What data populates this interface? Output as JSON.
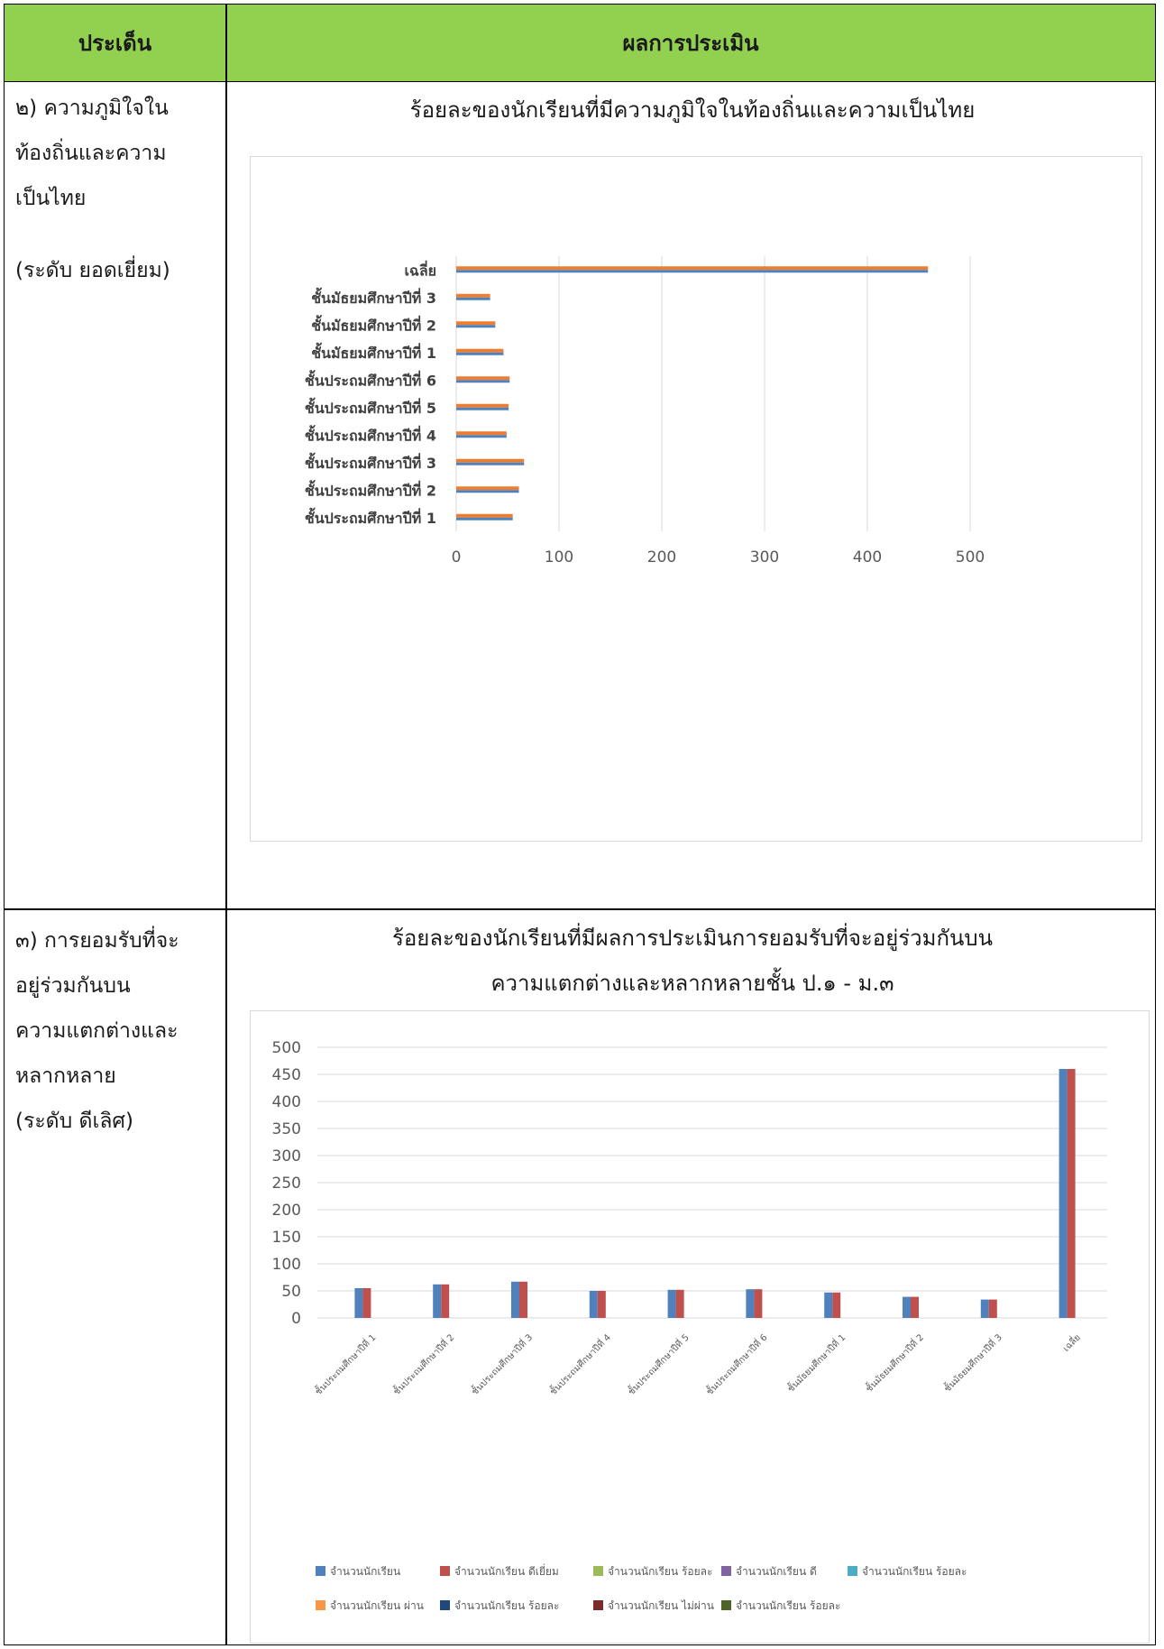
{
  "header": {
    "col1": "ประเด็น",
    "col2": "ผลการประเมิน"
  },
  "rows": [
    {
      "left_lines": [
        "๒) ความภูมิใจใน",
        "ท้องถิ่นและความ",
        "เป็นไทย",
        "",
        "(ระดับ ยอดเยี่ยม)"
      ],
      "chart_title_lines": [
        "ร้อยละของนักเรียนที่มีความภูมิใจในท้องถิ่นและความเป็นไทย"
      ]
    },
    {
      "left_lines": [
        "๓) การยอมรับที่จะ",
        "อยู่ร่วมกันบน",
        "ความแตกต่างและ",
        "หลากหลาย",
        "(ระดับ ดีเลิศ)"
      ],
      "chart_title_lines": [
        "ร้อยละของนักเรียนที่มีผลการประเมินการยอมรับที่จะอยู่ร่วมกันบน",
        "ความแตกต่างและหลากหลายชั้น ป.๑  - ม.๓"
      ]
    }
  ],
  "colors": {
    "header_bg": "#92d050",
    "series_blue": "#4f81bd",
    "series_orange": "#ed7d31",
    "series_red": "#c0504d"
  },
  "chart_data": [
    {
      "type": "bar",
      "orientation": "horizontal",
      "title": "ร้อยละของนักเรียนที่มีความภูมิใจในท้องถิ่นและความเป็นไทย",
      "categories": [
        "ชั้นประถมศึกษาปีที่ 1",
        "ชั้นประถมศึกษาปีที่ 2",
        "ชั้นประถมศึกษาปีที่ 3",
        "ชั้นประถมศึกษาปีที่ 4",
        "ชั้นประถมศึกษาปีที่ 5",
        "ชั้นประถมศึกษาปีที่ 6",
        "ชั้นมัธยมศึกษาปีที่ 1",
        "ชั้นมัธยมศึกษาปีที่ 2",
        "ชั้นมัธยมศึกษาปีที่ 3",
        "เฉลี่ย"
      ],
      "series": [
        {
          "values": [
            55,
            61,
            66,
            49,
            51,
            52,
            46,
            38,
            33,
            459
          ]
        },
        {
          "values": [
            55,
            61,
            66,
            49,
            51,
            52,
            46,
            38,
            33,
            459
          ]
        }
      ],
      "xlim": [
        0,
        500
      ],
      "xticks": [
        "0",
        "100",
        "200",
        "300",
        "400",
        "500"
      ],
      "grid": "vertical"
    },
    {
      "type": "bar",
      "orientation": "vertical",
      "title": "ร้อยละของนักเรียนที่มีผลการประเมินการยอมรับที่จะอยู่ร่วมกันบน ความแตกต่างและหลากหลายชั้น ป.๑  - ม.๓",
      "categories": [
        "ชั้นประถมศึกษาปีที่ 1",
        "ชั้นประถมศึกษาปีที่ 2",
        "ชั้นประถมศึกษาปีที่ 3",
        "ชั้นประถมศึกษาปีที่ 4",
        "ชั้นประถมศึกษาปีที่ 5",
        "ชั้นประถมศึกษาปีที่ 6",
        "ชั้นมัธยมศึกษาปีที่ 1",
        "ชั้นมัธยมศึกษาปีที่ 2",
        "ชั้นมัธยมศึกษาปีที่ 3",
        "เฉลี่ย"
      ],
      "series": [
        {
          "name": "จำนวนนักเรียน",
          "values": [
            55,
            62,
            67,
            50,
            52,
            53,
            47,
            39,
            34,
            460
          ]
        },
        {
          "name": "จำนวนนักเรียน ดีเยี่ยม",
          "values": [
            55,
            62,
            67,
            50,
            52,
            53,
            47,
            39,
            34,
            460
          ]
        }
      ],
      "legend": [
        {
          "name": "จำนวนนักเรียน",
          "color": "#4f81bd"
        },
        {
          "name": "จำนวนนักเรียน ดีเยี่ยม",
          "color": "#c0504d"
        },
        {
          "name": "จำนวนนักเรียน ร้อยละ",
          "color": "#9bbb59"
        },
        {
          "name": "จำนวนนักเรียน ดี",
          "color": "#8064a2"
        },
        {
          "name": "จำนวนนักเรียน ร้อยละ",
          "color": "#4bacc6"
        },
        {
          "name": "จำนวนนักเรียน ผ่าน",
          "color": "#f79646"
        },
        {
          "name": "จำนวนนักเรียน ร้อยละ",
          "color": "#1f497d"
        },
        {
          "name": "จำนวนนักเรียน ไม่ผ่าน",
          "color": "#7b2c2a"
        },
        {
          "name": "จำนวนนักเรียน ร้อยละ",
          "color": "#4f6228"
        }
      ],
      "ylim": [
        0,
        500
      ],
      "yticks": [
        "0",
        "50",
        "100",
        "150",
        "200",
        "250",
        "300",
        "350",
        "400",
        "450",
        "500"
      ],
      "grid": "horizontal",
      "legend_position": "bottom"
    }
  ]
}
